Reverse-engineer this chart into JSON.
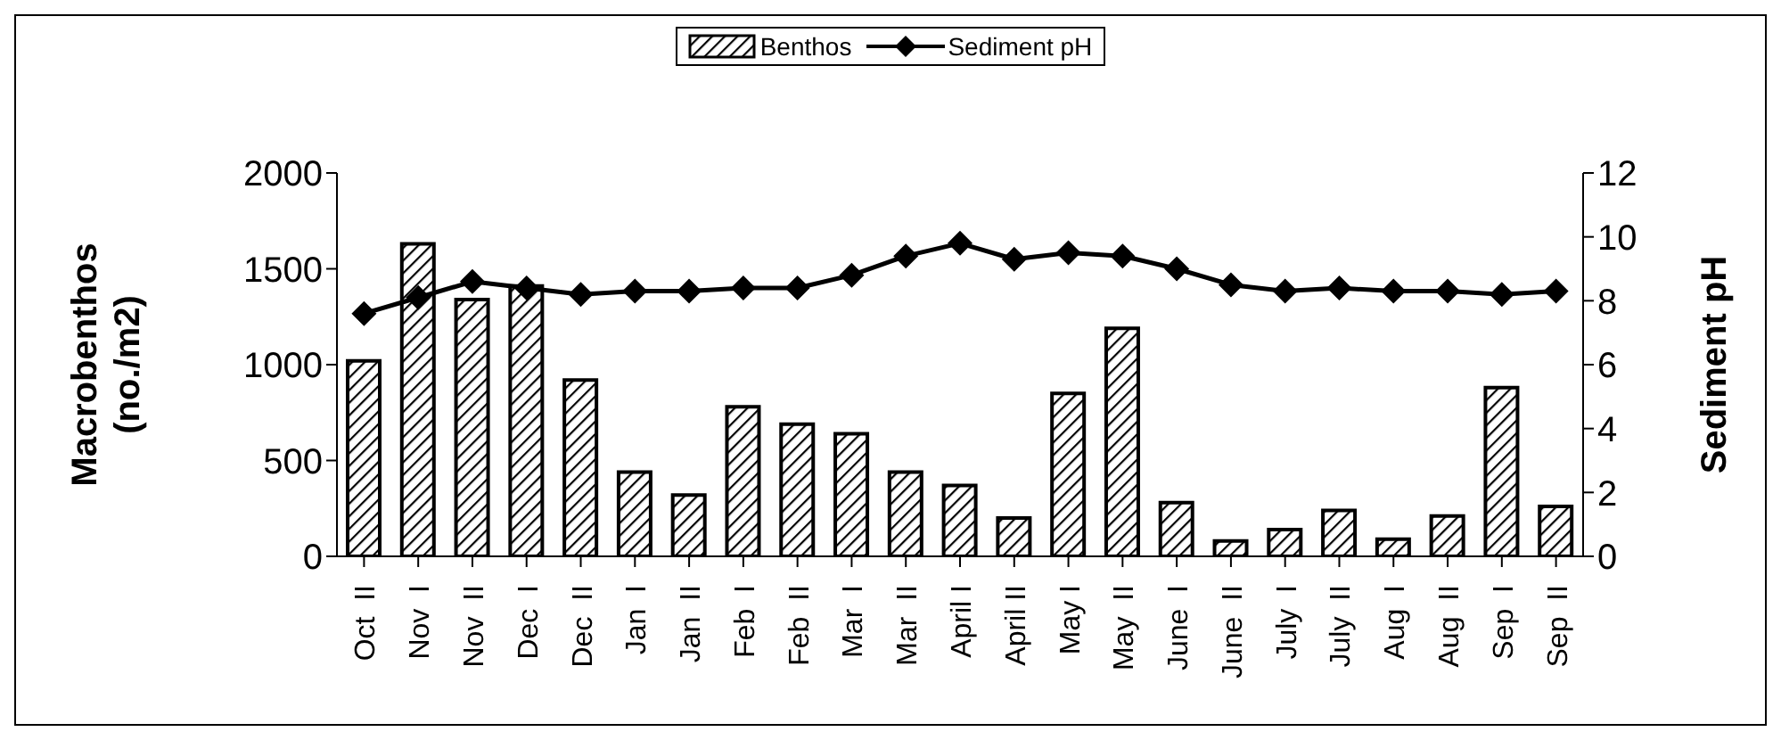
{
  "chart_data": {
    "type": "bar",
    "ylabel": "Macrobenthos\n(no./m2)",
    "y2label": "Sediment pH",
    "categories": [
      "Oct  II",
      "Nov  I",
      "Nov  II",
      "Dec  I",
      "Dec  II",
      "Jan  I",
      "Jan  II",
      "Feb  I",
      "Feb  II",
      "Mar  I",
      "Mar  II",
      "April I",
      "April II",
      "May I",
      "May  II",
      "June  I",
      "June  II",
      "July  I",
      "July  II",
      "Aug  I",
      "Aug  II",
      "Sep  I",
      "Sep  II"
    ],
    "series": [
      {
        "name": "Benthos",
        "color": "#000000",
        "values": [
          1020,
          1630,
          1340,
          1410,
          920,
          440,
          320,
          780,
          690,
          640,
          440,
          370,
          200,
          850,
          1190,
          280,
          80,
          140,
          240,
          90,
          210,
          880,
          260
        ]
      },
      {
        "name": "Sediment pH",
        "type": "line",
        "axis": "y2",
        "color": "#000000",
        "marker": "diamond",
        "values": [
          7.6,
          8.1,
          8.6,
          8.4,
          8.2,
          8.3,
          8.3,
          8.4,
          8.4,
          8.8,
          9.4,
          9.8,
          9.3,
          9.5,
          9.4,
          9.0,
          8.5,
          8.3,
          8.4,
          8.3,
          8.3,
          8.2,
          8.3
        ]
      }
    ],
    "ylim": [
      0,
      2000
    ],
    "yticks": [
      0,
      500,
      1000,
      1500,
      2000
    ],
    "y2lim": [
      0,
      12
    ],
    "y2ticks": [
      0,
      2,
      4,
      6,
      8,
      10,
      12
    ],
    "grid": false,
    "legend": "top"
  }
}
